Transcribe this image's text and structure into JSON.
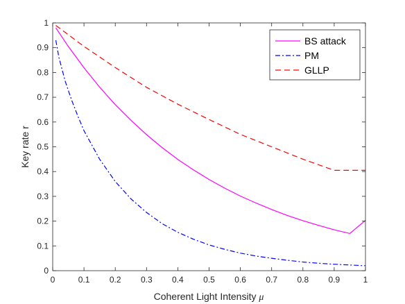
{
  "chart_data": {
    "type": "line",
    "xlabel": "Coherent Light Intensity",
    "xlabel_symbol": "μ",
    "ylabel": "Key rate r",
    "xlim": [
      0,
      1
    ],
    "ylim": [
      0,
      1
    ],
    "x_ticks": [
      "0",
      "0.1",
      "0.2",
      "0.3",
      "0.4",
      "0.5",
      "0.6",
      "0.7",
      "0.8",
      "0.9",
      "1"
    ],
    "y_ticks": [
      "0",
      "0.1",
      "0.2",
      "0.3",
      "0.4",
      "0.5",
      "0.6",
      "0.7",
      "0.8",
      "0.9",
      "1"
    ],
    "grid": false,
    "legend_position": "top-right",
    "series": [
      {
        "name": "BS attack",
        "color": "#ff00ff",
        "dash": "solid",
        "x": [
          0.01,
          0.05,
          0.1,
          0.15,
          0.2,
          0.25,
          0.3,
          0.35,
          0.4,
          0.45,
          0.5,
          0.55,
          0.6,
          0.65,
          0.7,
          0.75,
          0.8,
          0.85,
          0.9,
          0.95,
          1.0
        ],
        "y": [
          0.98,
          0.905,
          0.819,
          0.741,
          0.67,
          0.607,
          0.549,
          0.497,
          0.449,
          0.407,
          0.368,
          0.333,
          0.301,
          0.273,
          0.247,
          0.223,
          0.202,
          0.183,
          0.165,
          0.15,
          0.203
        ]
      },
      {
        "name": "PM",
        "color": "#0000ff",
        "dash": "dashdot",
        "x": [
          0.01,
          0.02,
          0.04,
          0.06,
          0.08,
          0.1,
          0.15,
          0.2,
          0.25,
          0.3,
          0.35,
          0.4,
          0.45,
          0.5,
          0.55,
          0.6,
          0.65,
          0.7,
          0.75,
          0.8,
          0.85,
          0.9,
          0.95,
          1.0
        ],
        "y": [
          0.93,
          0.86,
          0.765,
          0.69,
          0.625,
          0.565,
          0.45,
          0.36,
          0.29,
          0.235,
          0.19,
          0.155,
          0.127,
          0.104,
          0.086,
          0.071,
          0.059,
          0.05,
          0.042,
          0.035,
          0.03,
          0.026,
          0.023,
          0.02
        ]
      },
      {
        "name": "GLLP",
        "color": "#ff0000",
        "dash": "dashed",
        "x": [
          0.01,
          0.1,
          0.2,
          0.3,
          0.4,
          0.5,
          0.6,
          0.7,
          0.8,
          0.9,
          1.0
        ],
        "y": [
          0.99,
          0.905,
          0.82,
          0.74,
          0.672,
          0.61,
          0.55,
          0.5,
          0.45,
          0.405,
          0.405
        ]
      }
    ]
  }
}
